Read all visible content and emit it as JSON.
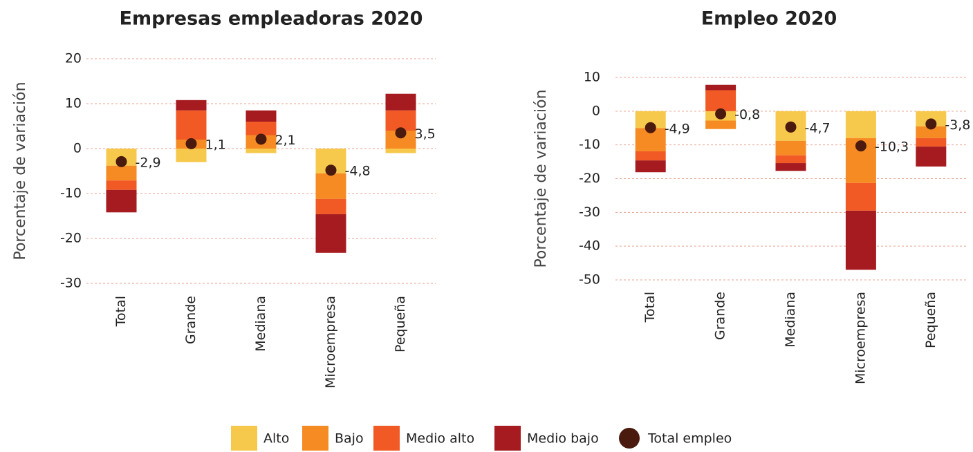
{
  "chart_data": [
    {
      "type": "bar",
      "stacked": true,
      "title": "Empresas empleadoras 2020",
      "y_label": "Porcentaje de variación",
      "categories": [
        "Total",
        "Grande",
        "Mediana",
        "Microempresa",
        "Pequeña"
      ],
      "series": [
        {
          "name": "Alto",
          "color": "#f6c94c",
          "values": [
            -3.8,
            -3,
            -1,
            -5.5,
            -1
          ]
        },
        {
          "name": "Bajo",
          "color": "#f68b24",
          "values": [
            -3.3,
            2,
            3,
            -5.7,
            4
          ]
        },
        {
          "name": "Medio alto",
          "color": "#f15a24",
          "values": [
            -2.1,
            6.5,
            3,
            -3.4,
            4.5
          ]
        },
        {
          "name": "Medio bajo",
          "color": "#a61b1f",
          "values": [
            -5,
            2.3,
            2.5,
            -8.6,
            3.7
          ]
        }
      ],
      "markers": {
        "name": "Total empleo",
        "color": "#4a1a0e",
        "values": [
          -2.9,
          1.1,
          2.1,
          -4.8,
          3.5
        ],
        "value_labels": [
          "-2,9",
          "1,1",
          "2,1",
          "-4,8",
          "3,5"
        ]
      },
      "ylim": [
        -30,
        20
      ],
      "yticks": [
        -30,
        -20,
        -10,
        0,
        10,
        20
      ],
      "grid": true
    },
    {
      "type": "bar",
      "stacked": true,
      "title": "Empleo 2020",
      "y_label": "Porcentaje de variación",
      "categories": [
        "Total",
        "Grande",
        "Mediana",
        "Microempresa",
        "Pequeña"
      ],
      "series": [
        {
          "color": "#f6c94c",
          "values": [
            -5,
            -2.8,
            -8.8,
            -8,
            -4.5
          ]
        },
        {
          "color": "#f68b24",
          "values": [
            -6.9,
            -2.5,
            -4.3,
            -13.3,
            -3.5
          ]
        },
        {
          "color": "#f15a24",
          "values": [
            -2.7,
            6.2,
            -2.3,
            -8.2,
            -2.5
          ]
        },
        {
          "color": "#a61b1f",
          "values": [
            -3.5,
            1.6,
            -2.3,
            -17.5,
            -5.9
          ]
        }
      ],
      "markers": {
        "color": "#4a1a0e",
        "values": [
          -4.9,
          -0.8,
          -4.7,
          -10.3,
          -3.8
        ],
        "value_labels": [
          "-4,9",
          "-0,8",
          "-4,7",
          "-10,3",
          "-3,8"
        ]
      },
      "ylim": [
        -50,
        10
      ],
      "yticks": [
        -50,
        -40,
        -30,
        -20,
        -10,
        0,
        10
      ],
      "grid": true
    }
  ]
}
